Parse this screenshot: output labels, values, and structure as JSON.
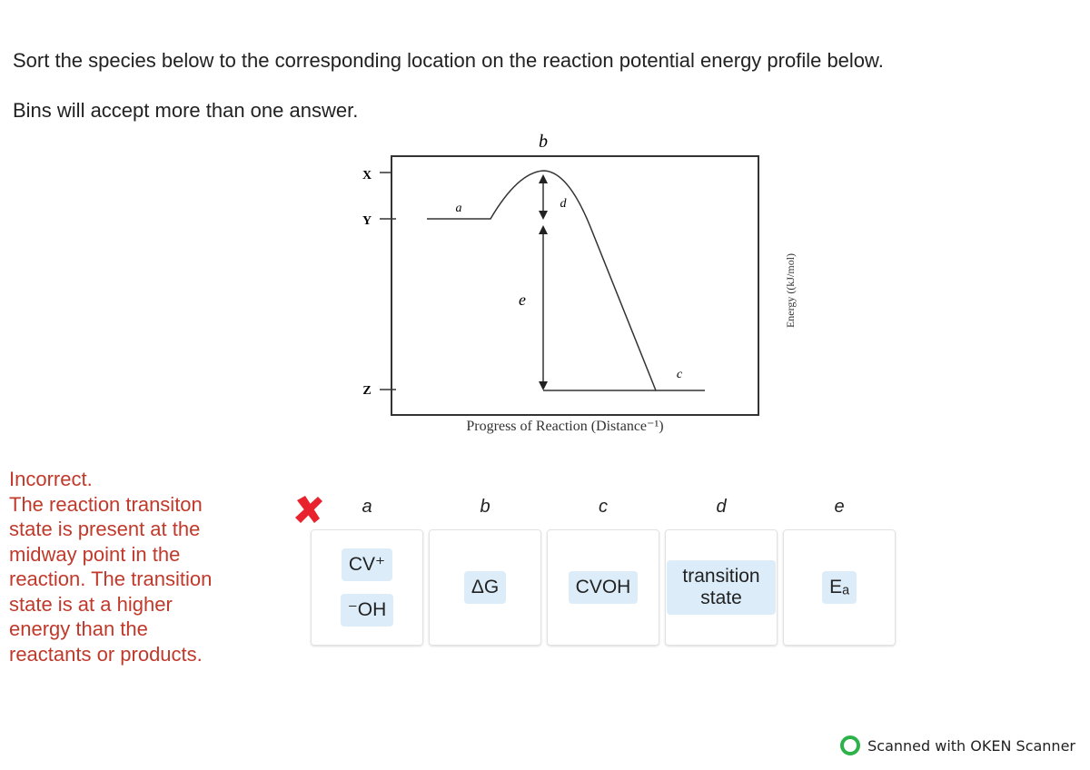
{
  "instructions": [
    "Sort the species below to the corresponding location on the reaction potential energy profile below.",
    "Bins will accept more than one answer."
  ],
  "diagram": {
    "top_label": "b",
    "level_labels": [
      "X",
      "Y",
      "Z"
    ],
    "curve_labels": [
      "a",
      "d",
      "e",
      "c"
    ],
    "x_axis_label": "Progress of Reaction (Distance⁻¹)",
    "y_axis_label": "Energy ((kJ/mol)"
  },
  "feedback": {
    "status": "Incorrect.",
    "lines": [
      "The reaction transiton",
      "state is present at the",
      "midway point in the",
      "reaction.  The transition",
      "state is at a higher",
      "energy than the",
      "reactants or products."
    ]
  },
  "bins": [
    {
      "label": "a",
      "items": [
        "CV⁺",
        "⁻OH"
      ]
    },
    {
      "label": "b",
      "items": [
        "ΔG"
      ]
    },
    {
      "label": "c",
      "items": [
        "CVOH"
      ]
    },
    {
      "label": "d",
      "items": [
        "transition state"
      ]
    },
    {
      "label": "e",
      "items": [
        "Eₐ"
      ]
    }
  ],
  "watermark": "Scanned with OKEN Scanner"
}
